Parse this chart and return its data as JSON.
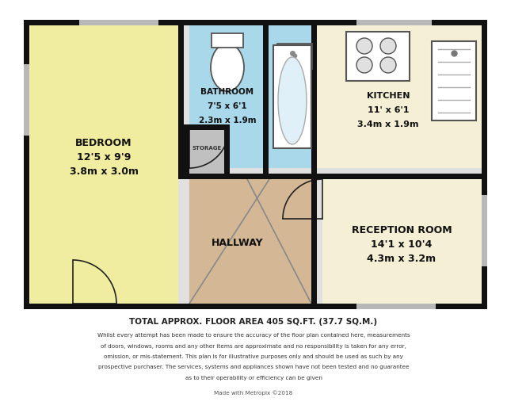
{
  "bedroom_color": "#f0eda0",
  "bathroom_color": "#a8d8ea",
  "kitchen_color": "#f5f0d5",
  "hallway_color": "#d4b896",
  "reception_color": "#f5f0d5",
  "storage_color": "#c0c0c0",
  "wall_color": "#111111",
  "window_color": "#b8b8b8",
  "title_text": "TOTAL APPROX. FLOOR AREA 405 SQ.FT. (37.7 SQ.M.)",
  "disclaimer_lines": [
    "Whilst every attempt has been made to ensure the accuracy of the floor plan contained here, measurements",
    "of doors, windows, rooms and any other items are approximate and no responsibility is taken for any error,",
    "omission, or mis-statement. This plan is for illustrative purposes only and should be used as such by any",
    "prospective purchaser. The services, systems and appliances shown have not been tested and no guarantee",
    "as to their operability or efficiency can be given"
  ],
  "credit": "Made with Metropix ©2018",
  "bg_floor": "#e0e0e0"
}
